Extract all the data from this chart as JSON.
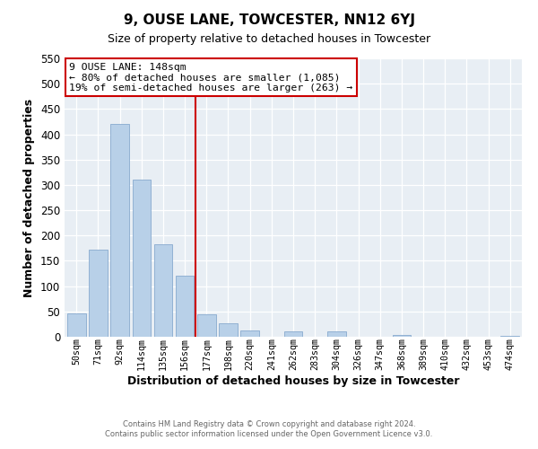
{
  "title": "9, OUSE LANE, TOWCESTER, NN12 6YJ",
  "subtitle": "Size of property relative to detached houses in Towcester",
  "xlabel": "Distribution of detached houses by size in Towcester",
  "ylabel": "Number of detached properties",
  "bar_labels": [
    "50sqm",
    "71sqm",
    "92sqm",
    "114sqm",
    "135sqm",
    "156sqm",
    "177sqm",
    "198sqm",
    "220sqm",
    "241sqm",
    "262sqm",
    "283sqm",
    "304sqm",
    "326sqm",
    "347sqm",
    "368sqm",
    "389sqm",
    "410sqm",
    "432sqm",
    "453sqm",
    "474sqm"
  ],
  "bar_values": [
    47,
    172,
    420,
    311,
    183,
    120,
    45,
    27,
    13,
    0,
    10,
    0,
    10,
    0,
    0,
    3,
    0,
    0,
    0,
    0,
    2
  ],
  "bar_color": "#b8d0e8",
  "bar_edge_color": "#88aace",
  "ylim": [
    0,
    550
  ],
  "yticks": [
    0,
    50,
    100,
    150,
    200,
    250,
    300,
    350,
    400,
    450,
    500,
    550
  ],
  "vline_x_index": 5,
  "vline_color": "#cc0000",
  "annotation_title": "9 OUSE LANE: 148sqm",
  "annotation_line1": "← 80% of detached houses are smaller (1,085)",
  "annotation_line2": "19% of semi-detached houses are larger (263) →",
  "annotation_box_facecolor": "#ffffff",
  "annotation_box_edgecolor": "#cc0000",
  "footer1": "Contains HM Land Registry data © Crown copyright and database right 2024.",
  "footer2": "Contains public sector information licensed under the Open Government Licence v3.0.",
  "fig_facecolor": "#ffffff",
  "plot_facecolor": "#e8eef4"
}
